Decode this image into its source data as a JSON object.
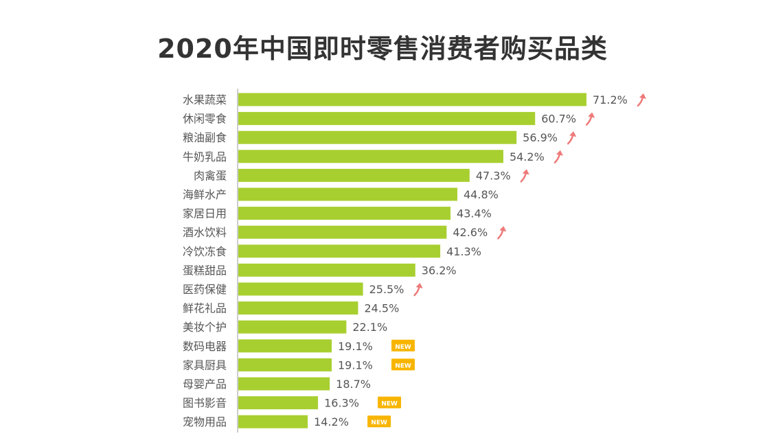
{
  "chart_data": {
    "type": "bar",
    "orientation": "horizontal",
    "title": "2020年中国即时零售消费者购买品类",
    "xlabel": "",
    "ylabel": "",
    "xlim": [
      0,
      72
    ],
    "grid": false,
    "categories": [
      "水果蔬菜",
      "休闲零食",
      "粮油副食",
      "牛奶乳品",
      "肉禽蛋",
      "海鲜水产",
      "家居日用",
      "酒水饮料",
      "冷饮冻食",
      "蛋糕甜品",
      "医药保健",
      "鲜花礼品",
      "美妆个护",
      "数码电器",
      "家具厨具",
      "母婴产品",
      "图书影音",
      "宠物用品"
    ],
    "values": [
      71.2,
      60.7,
      56.9,
      54.2,
      47.3,
      44.8,
      43.4,
      42.6,
      41.3,
      36.2,
      25.5,
      24.5,
      22.1,
      19.1,
      19.1,
      18.7,
      16.3,
      14.2
    ],
    "value_labels": [
      "71.2%",
      "60.7%",
      "56.9%",
      "54.2%",
      "47.3%",
      "44.8%",
      "43.4%",
      "42.6%",
      "41.3%",
      "36.2%",
      "25.5%",
      "24.5%",
      "22.1%",
      "19.1%",
      "19.1%",
      "18.7%",
      "16.3%",
      "14.2%"
    ],
    "markers": [
      "up",
      "up",
      "up",
      "up",
      "up",
      "",
      "",
      "up",
      "",
      "",
      "up",
      "",
      "",
      "new",
      "new",
      "",
      "new",
      "new"
    ],
    "new_badge_label": "NEW",
    "colors": {
      "bar": "#a8cf30",
      "arrow": "#ee7a7a",
      "badge": "#f8b500",
      "badge_text": "#ffffff",
      "label": "#555555",
      "value": "#555555",
      "axis": "#999999"
    }
  }
}
